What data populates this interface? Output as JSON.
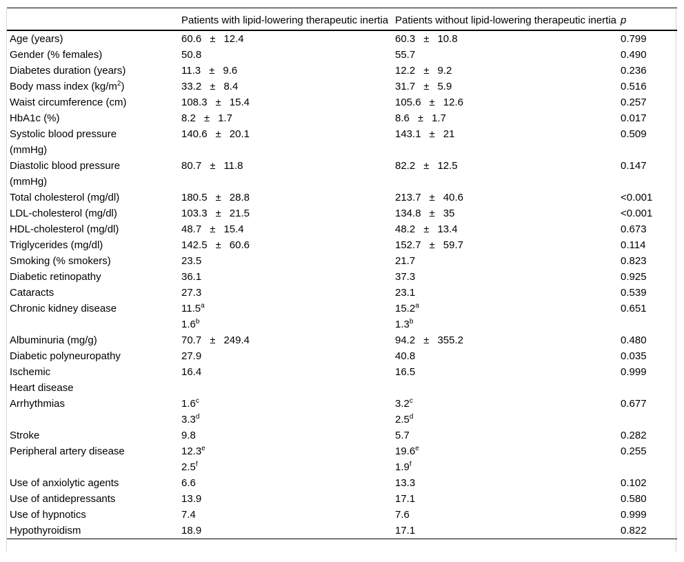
{
  "table": {
    "plus_minus": "±",
    "header": {
      "col1": "",
      "col2": "Patients with lipid-lowering therapeutic inertia",
      "col3": "Patients without lipid-lowering therapeutic inertia",
      "p": "p"
    },
    "rows": [
      {
        "label": [
          "Age (years)"
        ],
        "g1": [
          {
            "mean": "60.6",
            "sd": "12.4"
          }
        ],
        "g2": [
          {
            "mean": "60.3",
            "sd": "10.8"
          }
        ],
        "p": "0.799"
      },
      {
        "label": [
          "Gender (% females)"
        ],
        "g1": [
          {
            "mean": "50.8"
          }
        ],
        "g2": [
          {
            "mean": "55.7"
          }
        ],
        "p": "0.490"
      },
      {
        "label": [
          "Diabetes duration (years)"
        ],
        "g1": [
          {
            "mean": "11.3",
            "sd": "9.6"
          }
        ],
        "g2": [
          {
            "mean": "12.2",
            "sd": "9.2"
          }
        ],
        "p": "0.236"
      },
      {
        "label": [
          {
            "text": "Body mass index (kg/m",
            "sup": "2",
            "after": ")"
          }
        ],
        "g1": [
          {
            "mean": "33.2",
            "sd": "8.4"
          }
        ],
        "g2": [
          {
            "mean": "31.7",
            "sd": "5.9"
          }
        ],
        "p": "0.516"
      },
      {
        "label": [
          "Waist circumference (cm)"
        ],
        "g1": [
          {
            "mean": "108.3",
            "sd": "15.4"
          }
        ],
        "g2": [
          {
            "mean": "105.6",
            "sd": "12.6"
          }
        ],
        "p": "0.257"
      },
      {
        "label": [
          "HbA1c (%)"
        ],
        "g1": [
          {
            "mean": "8.2",
            "sd": "1.7"
          }
        ],
        "g2": [
          {
            "mean": "8.6",
            "sd": "1.7"
          }
        ],
        "p": "0.017"
      },
      {
        "label": [
          "Systolic blood pressure",
          "(mmHg)"
        ],
        "g1": [
          {
            "mean": "140.6",
            "sd": "20.1"
          }
        ],
        "g2": [
          {
            "mean": "143.1",
            "sd": "21"
          }
        ],
        "p": "0.509"
      },
      {
        "label": [
          "Diastolic blood pressure",
          "(mmHg)"
        ],
        "g1": [
          {
            "mean": "80.7",
            "sd": "11.8"
          }
        ],
        "g2": [
          {
            "mean": "82.2",
            "sd": "12.5"
          }
        ],
        "p": "0.147"
      },
      {
        "label": [
          "Total cholesterol (mg/dl)"
        ],
        "g1": [
          {
            "mean": "180.5",
            "sd": "28.8"
          }
        ],
        "g2": [
          {
            "mean": "213.7",
            "sd": "40.6"
          }
        ],
        "p": "<0.001"
      },
      {
        "label": [
          "LDL-cholesterol (mg/dl)"
        ],
        "g1": [
          {
            "mean": "103.3",
            "sd": "21.5"
          }
        ],
        "g2": [
          {
            "mean": "134.8",
            "sd": "35"
          }
        ],
        "p": "<0.001"
      },
      {
        "label": [
          "HDL-cholesterol (mg/dl)"
        ],
        "g1": [
          {
            "mean": "48.7",
            "sd": "15.4"
          }
        ],
        "g2": [
          {
            "mean": "48.2",
            "sd": "13.4"
          }
        ],
        "p": "0.673"
      },
      {
        "label": [
          "Triglycerides (mg/dl)"
        ],
        "g1": [
          {
            "mean": "142.5",
            "sd": "60.6"
          }
        ],
        "g2": [
          {
            "mean": "152.7",
            "sd": "59.7"
          }
        ],
        "p": "0.114"
      },
      {
        "label": [
          "Smoking (% smokers)"
        ],
        "g1": [
          {
            "mean": "23.5"
          }
        ],
        "g2": [
          {
            "mean": "21.7"
          }
        ],
        "p": "0.823"
      },
      {
        "label": [
          "Diabetic retinopathy"
        ],
        "g1": [
          {
            "mean": "36.1"
          }
        ],
        "g2": [
          {
            "mean": "37.3"
          }
        ],
        "p": "0.925"
      },
      {
        "label": [
          "Cataracts"
        ],
        "g1": [
          {
            "mean": "27.3"
          }
        ],
        "g2": [
          {
            "mean": "23.1"
          }
        ],
        "p": "0.539"
      },
      {
        "label": [
          "Chronic kidney disease"
        ],
        "g1": [
          {
            "mean": "11.5",
            "sup": "a"
          },
          {
            "mean": "1.6",
            "sup": "b"
          }
        ],
        "g2": [
          {
            "mean": "15.2",
            "sup": "a"
          },
          {
            "mean": "1.3",
            "sup": "b"
          }
        ],
        "p": "0.651"
      },
      {
        "label": [
          "Albuminuria (mg/g)"
        ],
        "g1": [
          {
            "mean": "70.7",
            "sd": "249.4"
          }
        ],
        "g2": [
          {
            "mean": "94.2",
            "sd": "355.2"
          }
        ],
        "p": "0.480"
      },
      {
        "label": [
          "Diabetic polyneuropathy"
        ],
        "g1": [
          {
            "mean": "27.9"
          }
        ],
        "g2": [
          {
            "mean": "40.8"
          }
        ],
        "p": "0.035"
      },
      {
        "label": [
          "Ischemic",
          "Heart disease"
        ],
        "g1": [
          {
            "mean": "16.4"
          }
        ],
        "g2": [
          {
            "mean": "16.5"
          }
        ],
        "p": "0.999"
      },
      {
        "label": [
          "Arrhythmias"
        ],
        "g1": [
          {
            "mean": "1.6",
            "sup": "c"
          },
          {
            "mean": "3.3",
            "sup": "d"
          }
        ],
        "g2": [
          {
            "mean": "3.2",
            "sup": "c"
          },
          {
            "mean": "2.5",
            "sup": "d"
          }
        ],
        "p": "0.677"
      },
      {
        "label": [
          "Stroke"
        ],
        "g1": [
          {
            "mean": "9.8"
          }
        ],
        "g2": [
          {
            "mean": "5.7"
          }
        ],
        "p": "0.282"
      },
      {
        "label": [
          "Peripheral artery disease"
        ],
        "g1": [
          {
            "mean": "12.3",
            "sup": "e"
          },
          {
            "mean": "2.5",
            "sup": "f"
          }
        ],
        "g2": [
          {
            "mean": "19.6",
            "sup": "e"
          },
          {
            "mean": "1.9",
            "sup": "f"
          }
        ],
        "p": "0.255"
      },
      {
        "label": [
          "Use of anxiolytic agents"
        ],
        "g1": [
          {
            "mean": "6.6"
          }
        ],
        "g2": [
          {
            "mean": "13.3"
          }
        ],
        "p": "0.102"
      },
      {
        "label": [
          "Use of antidepressants"
        ],
        "g1": [
          {
            "mean": "13.9"
          }
        ],
        "g2": [
          {
            "mean": "17.1"
          }
        ],
        "p": "0.580"
      },
      {
        "label": [
          "Use of hypnotics"
        ],
        "g1": [
          {
            "mean": "7.4"
          }
        ],
        "g2": [
          {
            "mean": "7.6"
          }
        ],
        "p": "0.999"
      },
      {
        "label": [
          "Hypothyroidism"
        ],
        "g1": [
          {
            "mean": "18.9"
          }
        ],
        "g2": [
          {
            "mean": "17.1"
          }
        ],
        "p": "0.822"
      }
    ]
  }
}
